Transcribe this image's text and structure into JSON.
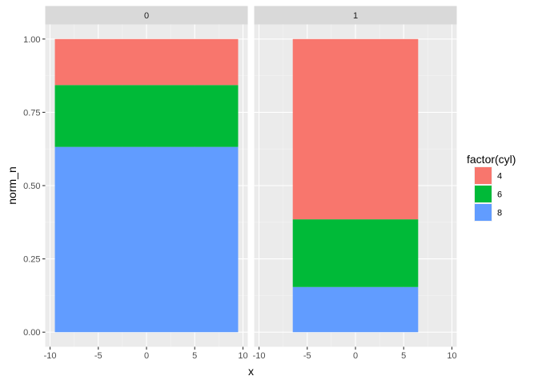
{
  "chart_data": {
    "type": "bar",
    "subtype": "stacked-100-faceted",
    "xlabel": "x",
    "ylabel": "norm_n",
    "x_ticks": [
      "-10",
      "-5",
      "0",
      "5",
      "10"
    ],
    "y_ticks": [
      "0.00",
      "0.25",
      "0.50",
      "0.75",
      "1.00"
    ],
    "xlim": [
      -10,
      10
    ],
    "ylim": [
      0,
      1
    ],
    "grid": true,
    "legend": {
      "title": "factor(cyl)",
      "position": "right",
      "items": [
        {
          "label": "4",
          "color": "#F8766D"
        },
        {
          "label": "6",
          "color": "#00BA38"
        },
        {
          "label": "8",
          "color": "#619CFF"
        }
      ]
    },
    "facets": [
      {
        "label": "0",
        "bar_x_range": [
          -9.5,
          9.5
        ],
        "segments": [
          {
            "cyl": "4",
            "value": 0.158
          },
          {
            "cyl": "6",
            "value": 0.211
          },
          {
            "cyl": "8",
            "value": 0.632
          }
        ]
      },
      {
        "label": "1",
        "bar_x_range": [
          -6.5,
          6.5
        ],
        "segments": [
          {
            "cyl": "4",
            "value": 0.615
          },
          {
            "cyl": "6",
            "value": 0.231
          },
          {
            "cyl": "8",
            "value": 0.154
          }
        ]
      }
    ]
  }
}
